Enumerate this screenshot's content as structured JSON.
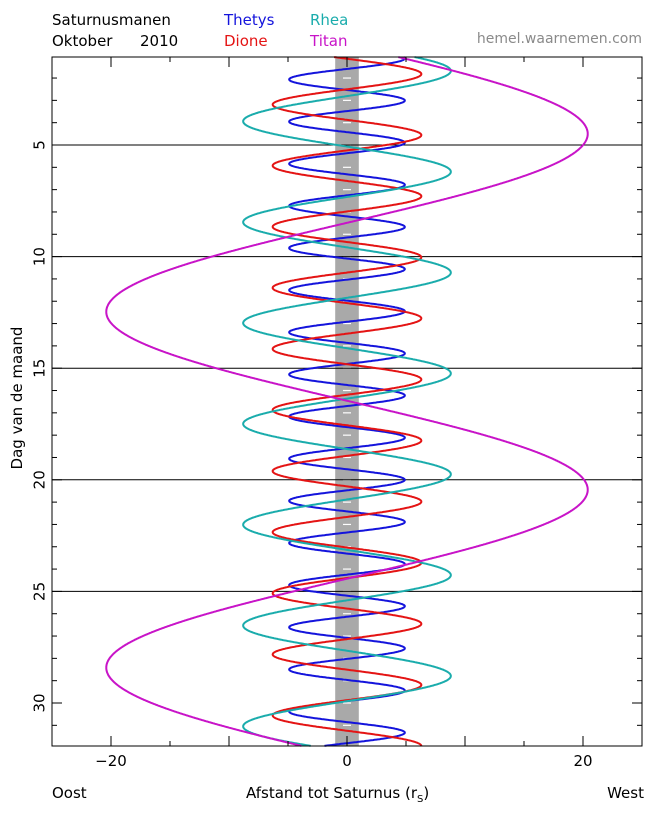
{
  "header": {
    "title": "Saturnusmanen",
    "month": "Oktober",
    "year": "2010",
    "source": "hemel.waarnemen.com"
  },
  "colors": {
    "Thetys": "#1414dc",
    "Dione": "#e41414",
    "Rhea": "#1aacac",
    "Titan": "#c814c8",
    "saturn_band": "#a9a9a9"
  },
  "chart_data": {
    "type": "line",
    "title": "Saturnusmanen Oktober 2010",
    "xlabel": "Afstand tot Saturnus (r",
    "xlabel_sub": "S",
    "xlabel_end": ")",
    "ylabel": "Dag van de maand",
    "x_left_label": "Oost",
    "x_right_label": "West",
    "xlim": [
      -25,
      25
    ],
    "ylim": [
      0.9,
      32
    ],
    "y_reversed": true,
    "xticks": [
      "−20",
      "0",
      "20"
    ],
    "xtick_values": [
      -20,
      0,
      20
    ],
    "yticks": [
      "5",
      "10",
      "15",
      "20",
      "25",
      "30"
    ],
    "ytick_values": [
      5,
      10,
      15,
      20,
      25,
      30
    ],
    "horizontal_lines": [
      5,
      10,
      15,
      20,
      25
    ],
    "saturn_halfwidth": 1,
    "series": [
      {
        "name": "Thetys",
        "amplitude": 4.9,
        "period_days": 1.888,
        "phase_day": 1.12
      },
      {
        "name": "Dione",
        "amplitude": 6.3,
        "period_days": 2.737,
        "phase_day": 1.82
      },
      {
        "name": "Rhea",
        "amplitude": 8.8,
        "period_days": 4.518,
        "phase_day": 1.68
      },
      {
        "name": "Titan",
        "amplitude": 20.4,
        "period_days": 15.945,
        "phase_day": 4.5
      }
    ]
  }
}
